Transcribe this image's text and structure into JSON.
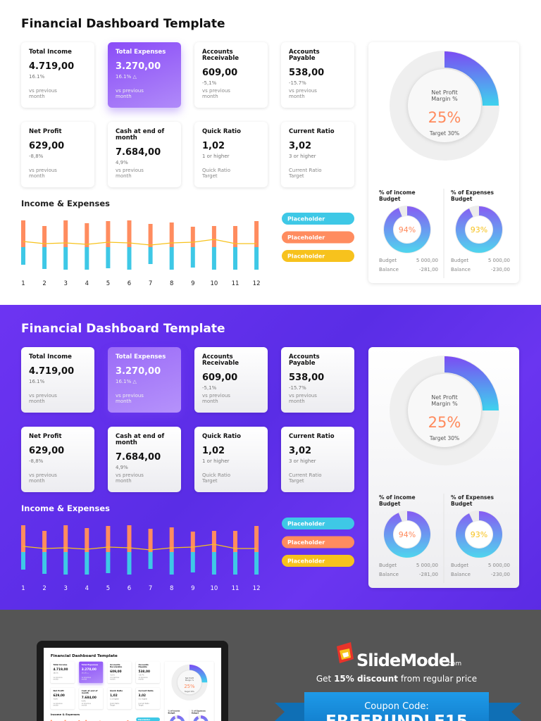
{
  "dashboard": {
    "title": "Financial Dashboard Template",
    "cards": [
      {
        "title": "Total Income",
        "value": "4.719,00",
        "change": "16.1%",
        "note": "vs previous month"
      },
      {
        "title": "Total Expenses",
        "value": "3.270,00",
        "change": "16.1% △",
        "note": "vs previous month"
      },
      {
        "title": "Accounts Receivable",
        "value": "609,00",
        "change": "-5,1%",
        "note": "vs previous month"
      },
      {
        "title": "Accounts Payable",
        "value": "538,00",
        "change": "-15.7%",
        "note": "vs previous month"
      },
      {
        "title": "Net Profit",
        "value": "629,00",
        "change": "-8,8%",
        "note": "vs previous month"
      },
      {
        "title": "Cash at end of month",
        "value": "7.684,00",
        "change": "4,9%",
        "note": "vs previous month"
      },
      {
        "title": "Quick Ratio",
        "value": "1,02",
        "change": "1 or higher",
        "note": "Quick Ratio Target"
      },
      {
        "title": "Current Ratio",
        "value": "3,02",
        "change": "3 or higher",
        "note": "Current Ratio Target"
      }
    ],
    "margin": {
      "title": "Net Profit Margin %",
      "value": 25,
      "value_label": "25%",
      "target": "Target 30%"
    },
    "gauges": [
      {
        "title": "% of income Budget",
        "value": 94,
        "value_label": "94%",
        "budget_label": "Budget",
        "budget": "5 000,00",
        "balance_label": "Balance",
        "balance": "-281,00"
      },
      {
        "title": "% of Expenses Budget",
        "value": 93,
        "value_label": "93%",
        "budget_label": "Budget",
        "budget": "5 000,00",
        "balance_label": "Balance",
        "balance": "-230,00"
      }
    ]
  },
  "chart_data": {
    "type": "bar",
    "title": "Income & Expenses",
    "categories": [
      "1",
      "2",
      "3",
      "4",
      "5",
      "6",
      "7",
      "8",
      "9",
      "10",
      "11",
      "12"
    ],
    "ylim": [
      -40,
      40
    ],
    "series": [
      {
        "name": "Placeholder",
        "color": "#3ec8e6",
        "values": [
          -25,
          -31,
          -32,
          -32,
          -30,
          -32,
          -24,
          -32,
          -29,
          -32,
          -32,
          -32
        ]
      },
      {
        "name": "Placeholder",
        "color": "#ff8c5f",
        "values": [
          38,
          30,
          38,
          34,
          37,
          38,
          33,
          35,
          29,
          30,
          30,
          37
        ]
      },
      {
        "name": "Placeholder",
        "color": "#f7c21d",
        "values": [
          8,
          5,
          6,
          4,
          7,
          6,
          3,
          6,
          7,
          11,
          5,
          5
        ]
      }
    ]
  },
  "ad": {
    "brand": "SlideModel",
    "domain": ".com",
    "offer_prefix": "Get",
    "offer_bold": "15% discount",
    "offer_suffix": "from regular price",
    "coupon_label": "Coupon Code:",
    "coupon_code": "FREEBUNDLE15"
  }
}
